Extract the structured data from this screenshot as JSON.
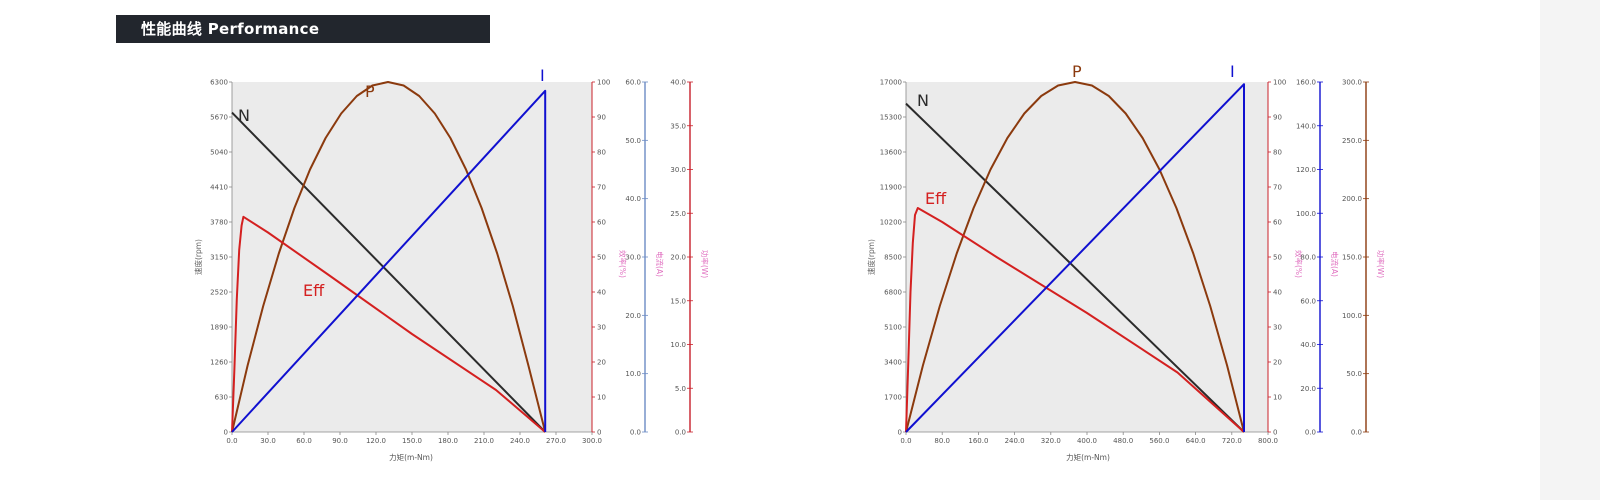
{
  "header": {
    "title": "性能曲线 Performance"
  },
  "colors": {
    "speed": "#2b2b2b",
    "power": "#8b3a0e",
    "efficiency": "#d42020",
    "current": "#1010d0",
    "plot_bg": "#ebebeb"
  },
  "chart_data": [
    {
      "type": "line",
      "xlabel": "力矩(m-Nm)",
      "xticks": [
        "0.0",
        "30.0",
        "60.0",
        "90.0",
        "120.0",
        "150.0",
        "180.0",
        "210.0",
        "240.0",
        "270.0",
        "300.0"
      ],
      "xlim": [
        0,
        300
      ],
      "axes": [
        {
          "key": "speed",
          "label": "速度(rpm)",
          "range": [
            0,
            6300
          ],
          "ticks": [
            "0",
            "630",
            "1260",
            "1890",
            "2520",
            "3150",
            "3780",
            "4410",
            "5040",
            "5670",
            "6300"
          ]
        },
        {
          "key": "efficiency",
          "label": "效率(%)",
          "range": [
            0,
            100
          ],
          "ticks": [
            "0",
            "10",
            "20",
            "30",
            "40",
            "50",
            "60",
            "70",
            "80",
            "90",
            "100"
          ]
        },
        {
          "key": "current",
          "label": "电流(A)",
          "range": [
            0,
            60
          ],
          "ticks": [
            "0.0",
            "10.0",
            "20.0",
            "30.0",
            "40.0",
            "50.0",
            "60.0"
          ]
        },
        {
          "key": "power",
          "label": "功率(W)",
          "range": [
            0,
            40
          ],
          "ticks": [
            "0.0",
            "5.0",
            "10.0",
            "15.0",
            "20.0",
            "25.0",
            "30.0",
            "35.0",
            "40.0"
          ]
        }
      ],
      "series": [
        {
          "name": "N",
          "key": "speed",
          "axis": 0,
          "x": [
            0,
            261
          ],
          "y": [
            5750,
            0
          ]
        },
        {
          "name": "P",
          "key": "power",
          "axis": 3,
          "x": [
            0,
            13,
            26,
            39,
            52,
            65,
            78,
            91,
            104,
            117,
            130,
            143,
            156,
            169,
            182,
            195,
            208,
            221,
            234,
            247,
            261
          ],
          "y": [
            0,
            7.6,
            14.4,
            20.4,
            25.6,
            30.0,
            33.6,
            36.4,
            38.4,
            39.6,
            40.0,
            39.6,
            38.4,
            36.4,
            33.6,
            30.0,
            25.6,
            20.4,
            14.4,
            7.6,
            0
          ]
        },
        {
          "name": "Eff",
          "key": "efficiency",
          "axis": 1,
          "x": [
            0,
            2,
            4,
            6,
            8,
            9.5,
            30,
            80,
            150,
            220,
            261
          ],
          "y": [
            0,
            18,
            38,
            52,
            59,
            61.5,
            57,
            45,
            28,
            12,
            0
          ]
        },
        {
          "name": "I",
          "key": "current",
          "axis": 2,
          "x": [
            0,
            261,
            261
          ],
          "y": [
            0,
            58.5,
            0
          ]
        }
      ]
    },
    {
      "type": "line",
      "xlabel": "力矩(m-Nm)",
      "xticks": [
        "0.0",
        "80.0",
        "160.0",
        "240.0",
        "320.0",
        "400.0",
        "480.0",
        "560.0",
        "640.0",
        "720.0",
        "800.0"
      ],
      "xlim": [
        0,
        800
      ],
      "axes": [
        {
          "key": "speed",
          "label": "速度(rpm)",
          "range": [
            0,
            17000
          ],
          "ticks": [
            "0",
            "1700",
            "3400",
            "5100",
            "6800",
            "8500",
            "10200",
            "11900",
            "13600",
            "15300",
            "17000"
          ]
        },
        {
          "key": "efficiency",
          "label": "效率(%)",
          "range": [
            0,
            100
          ],
          "ticks": [
            "0",
            "10",
            "20",
            "30",
            "40",
            "50",
            "60",
            "70",
            "80",
            "90",
            "100"
          ]
        },
        {
          "key": "current",
          "label": "电流(A)",
          "range": [
            0,
            160
          ],
          "ticks": [
            "0.0",
            "20.0",
            "40.0",
            "60.0",
            "80.0",
            "100.0",
            "120.0",
            "140.0",
            "160.0"
          ]
        },
        {
          "key": "power",
          "label": "功率(W)",
          "range": [
            0,
            300
          ],
          "ticks": [
            "0.0",
            "50.0",
            "100.0",
            "150.0",
            "200.0",
            "250.0",
            "300.0"
          ]
        }
      ],
      "series": [
        {
          "name": "N",
          "key": "speed",
          "axis": 0,
          "x": [
            0,
            747
          ],
          "y": [
            15950,
            0
          ]
        },
        {
          "name": "P",
          "key": "power",
          "axis": 3,
          "x": [
            0,
            37.35,
            74.7,
            112.05,
            149.4,
            186.75,
            224.1,
            261.45,
            298.8,
            336.15,
            373.5,
            410.85,
            448.2,
            485.55,
            522.9,
            560.25,
            597.6,
            634.95,
            672.3,
            709.65,
            747
          ],
          "y": [
            0,
            57,
            108,
            153,
            192,
            225,
            252,
            273,
            288,
            297,
            300,
            297,
            288,
            273,
            252,
            225,
            192,
            153,
            108,
            57,
            0
          ]
        },
        {
          "name": "Eff",
          "key": "efficiency",
          "axis": 1,
          "x": [
            0,
            5,
            10,
            15,
            20,
            26,
            80,
            200,
            400,
            600,
            747
          ],
          "y": [
            0,
            20,
            40,
            54,
            62,
            64,
            60,
            50,
            34,
            17,
            0
          ]
        },
        {
          "name": "I",
          "key": "current",
          "axis": 2,
          "x": [
            0,
            747,
            747
          ],
          "y": [
            0,
            159,
            0
          ]
        }
      ]
    }
  ]
}
